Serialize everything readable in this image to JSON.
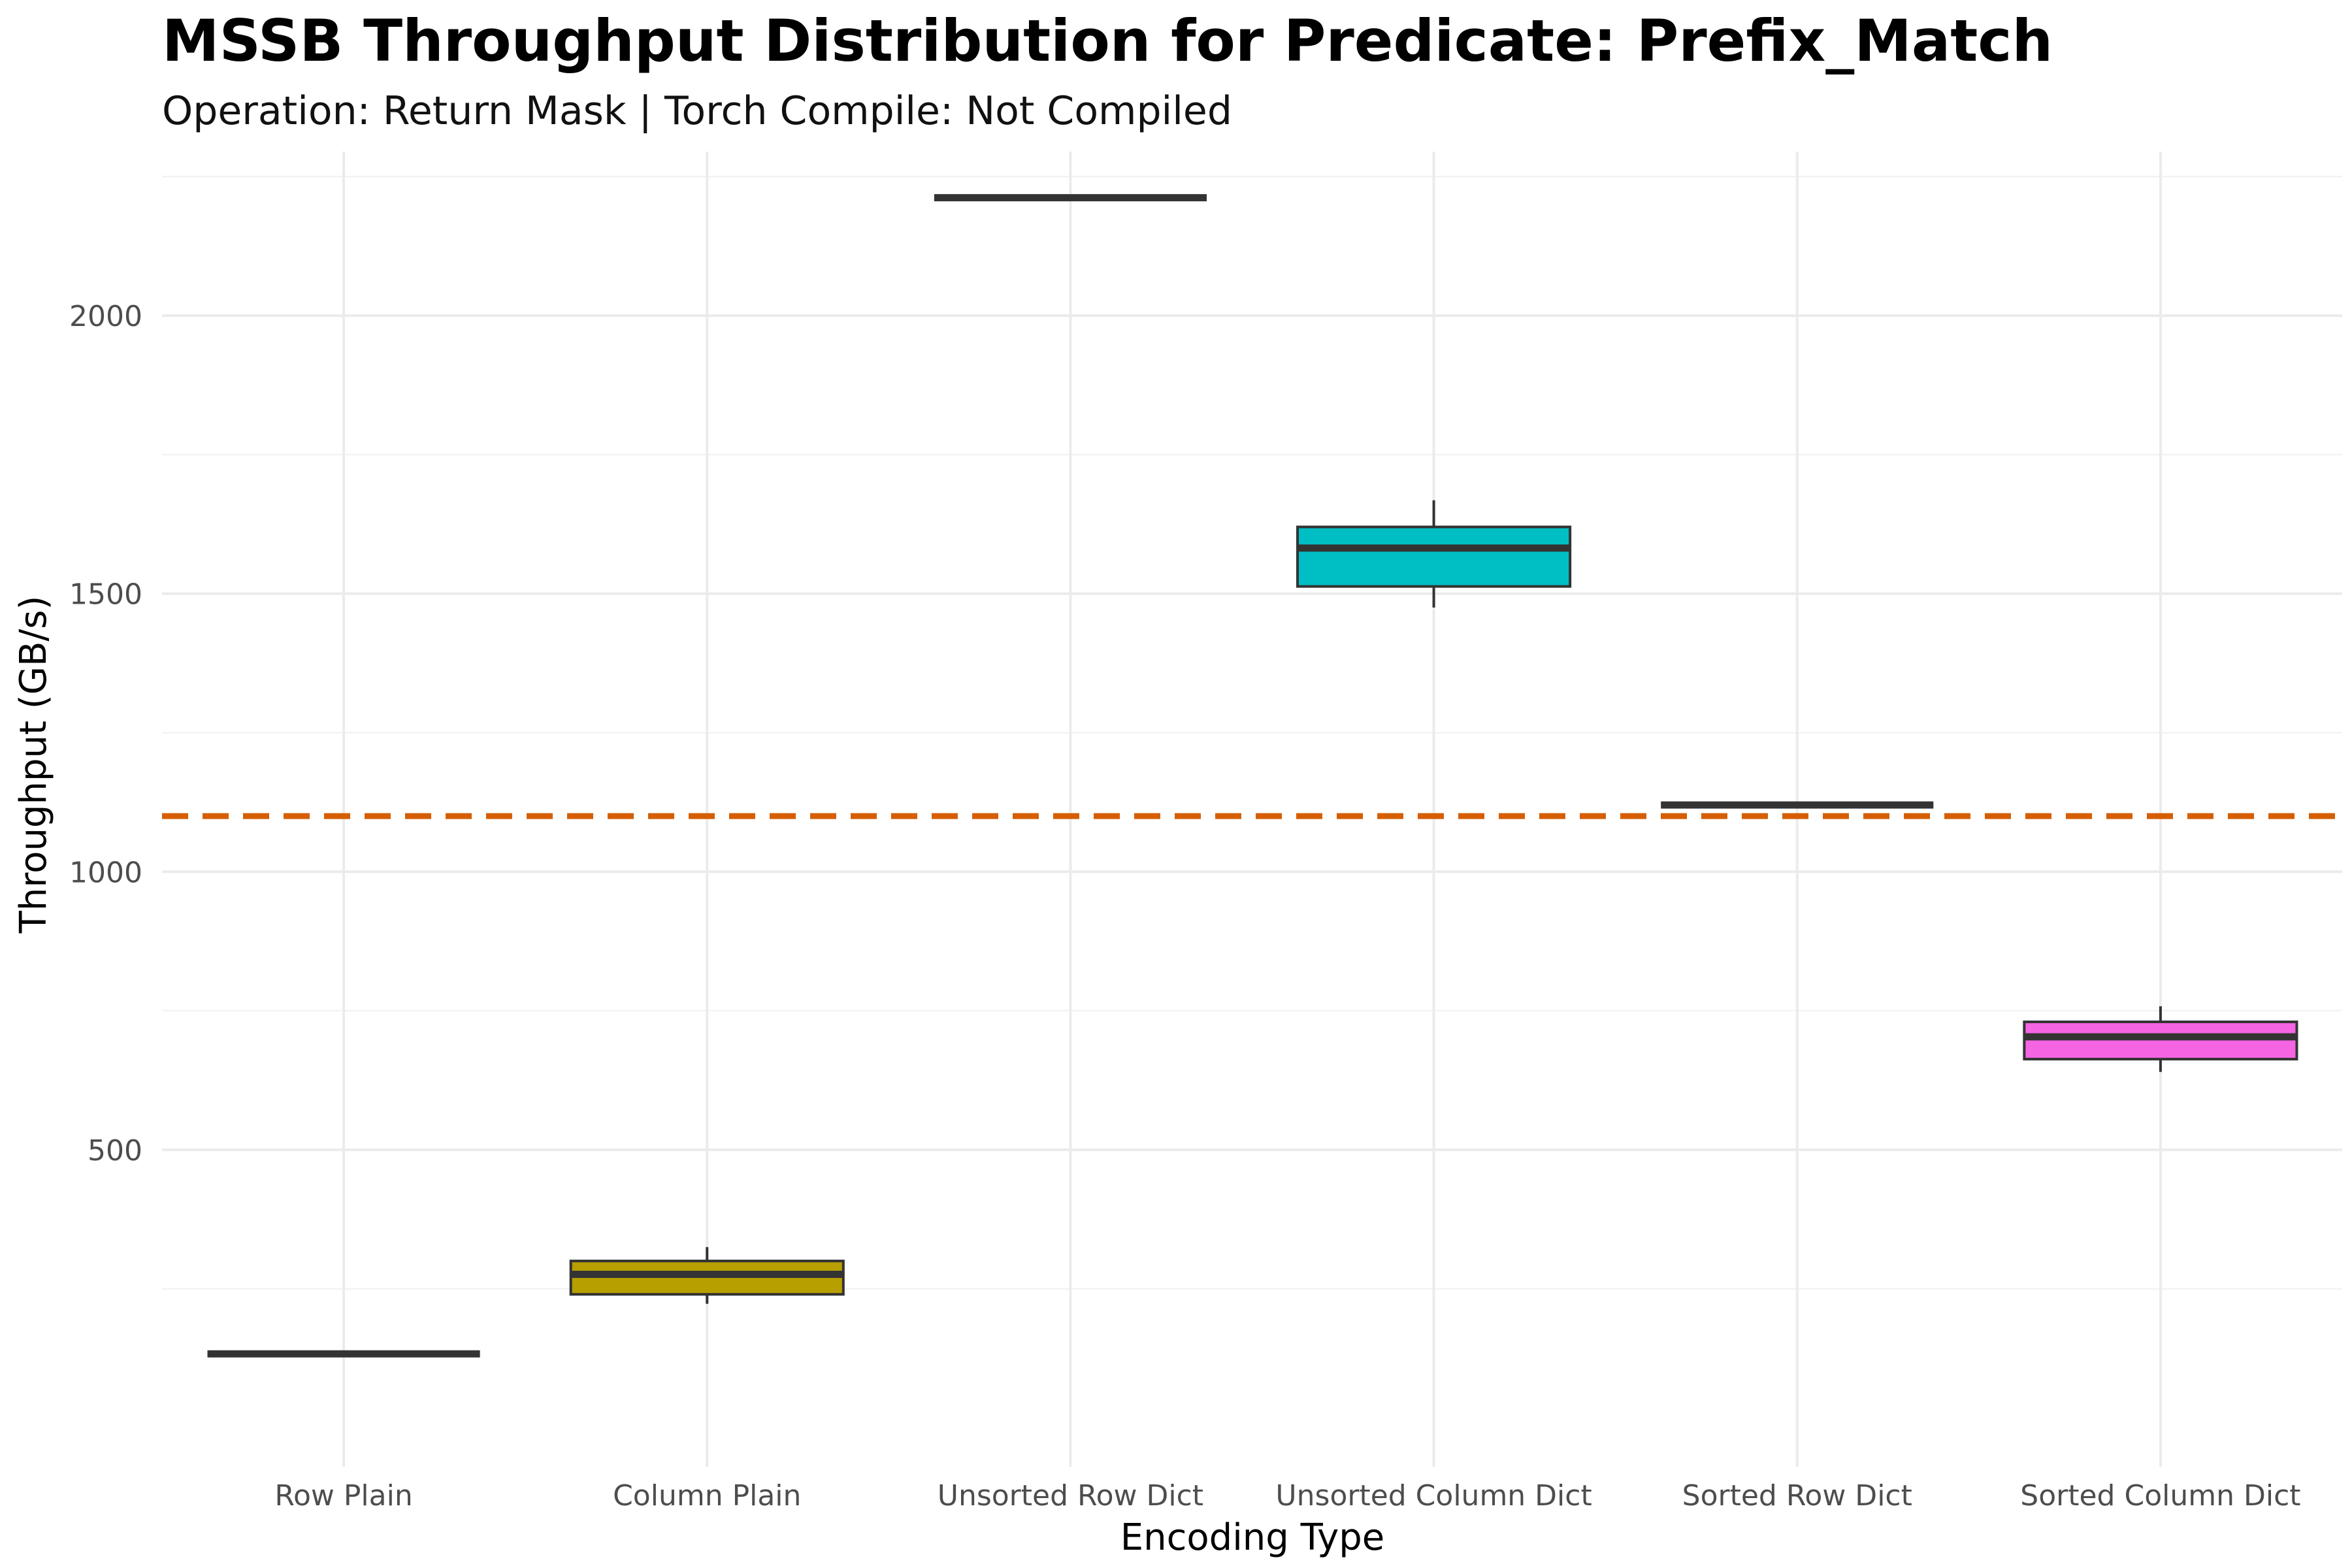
{
  "chart_data": {
    "type": "boxplot",
    "title": "MSSB Throughput Distribution for Predicate: Prefix_Match",
    "subtitle": "Operation: Return Mask | Torch Compile: Not Compiled",
    "xlabel": "Encoding Type",
    "ylabel": "Throughput (GB/s)",
    "ylim": [
      -70,
      2295
    ],
    "y_ticks": [
      500,
      1000,
      1500,
      2000
    ],
    "y_minor_ticks": [
      250,
      750,
      1250,
      1750,
      2250
    ],
    "grid": true,
    "legend": "none",
    "categories": [
      "Row Plain",
      "Column Plain",
      "Unsorted Row Dict",
      "Unsorted Column Dict",
      "Sorted Row Dict",
      "Sorted Column Dict"
    ],
    "boxes": [
      {
        "category": "Row Plain",
        "min": 133,
        "q1": 133,
        "median": 133,
        "q3": 133,
        "max": 133,
        "fill": "#F8766D"
      },
      {
        "category": "Column Plain",
        "min": 223,
        "q1": 240,
        "median": 276,
        "q3": 300,
        "max": 325,
        "fill": "#B79F00"
      },
      {
        "category": "Unsorted Row Dict",
        "min": 2212,
        "q1": 2212,
        "median": 2212,
        "q3": 2212,
        "max": 2212,
        "fill": "#00BA38"
      },
      {
        "category": "Unsorted Column Dict",
        "min": 1475,
        "q1": 1513,
        "median": 1582,
        "q3": 1620,
        "max": 1668,
        "fill": "#00BFC4"
      },
      {
        "category": "Sorted Row Dict",
        "min": 1120,
        "q1": 1120,
        "median": 1120,
        "q3": 1120,
        "max": 1120,
        "fill": "#619CFF"
      },
      {
        "category": "Sorted Column Dict",
        "min": 640,
        "q1": 663,
        "median": 703,
        "q3": 730,
        "max": 758,
        "fill": "#F564E3"
      }
    ],
    "reference_line": {
      "value": 1100,
      "color": "#D55E00",
      "style": "dashed"
    },
    "colors": {
      "box_outline": "#333333",
      "background": "#ffffff"
    }
  }
}
